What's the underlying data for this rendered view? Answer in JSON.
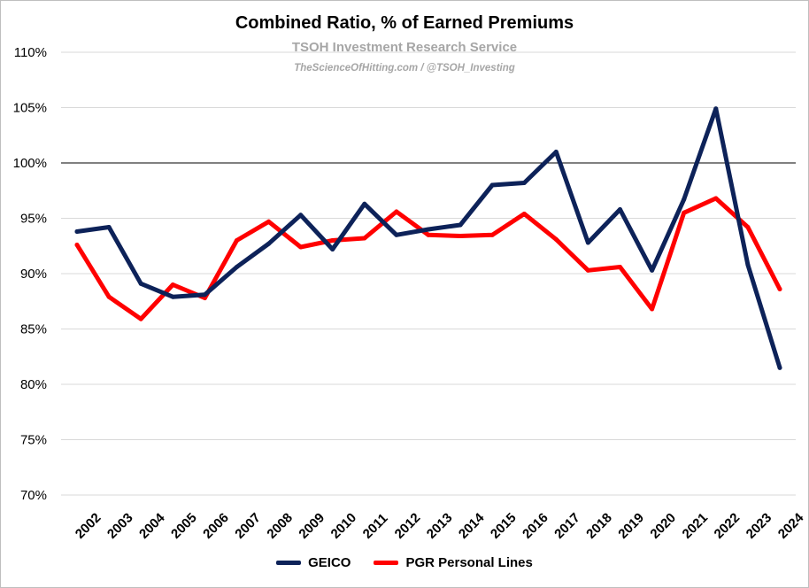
{
  "chart_data": {
    "type": "line",
    "title": "Combined Ratio, % of Earned Premiums",
    "subtitle": "TSOH Investment Research Service",
    "credit": "TheScienceOfHitting.com / @TSOH_Investing",
    "x": [
      "2002",
      "2003",
      "2004",
      "2005",
      "2006",
      "2007",
      "2008",
      "2009",
      "2010",
      "2011",
      "2012",
      "2013",
      "2014",
      "2015",
      "2016",
      "2017",
      "2018",
      "2019",
      "2020",
      "2021",
      "2022",
      "2023",
      "2024"
    ],
    "ylim": [
      70,
      110
    ],
    "yticks": [
      70,
      75,
      80,
      85,
      90,
      95,
      100,
      105,
      110
    ],
    "ytick_labels": [
      "70%",
      "75%",
      "80%",
      "85%",
      "90%",
      "95%",
      "100%",
      "105%",
      "110%"
    ],
    "reference_line": 100,
    "grid": true,
    "legend_position": "bottom",
    "series": [
      {
        "name": "GEICO",
        "color": "#0d2259",
        "values": [
          93.8,
          94.2,
          89.1,
          87.9,
          88.1,
          90.6,
          92.7,
          95.3,
          92.2,
          96.3,
          93.5,
          94.0,
          94.4,
          98.0,
          98.2,
          101.0,
          92.8,
          95.8,
          90.3,
          96.7,
          104.9,
          90.8,
          81.5
        ]
      },
      {
        "name": "PGR Personal Lines",
        "color": "#ff0000",
        "values": [
          92.6,
          87.9,
          85.9,
          89.0,
          87.8,
          93.0,
          94.7,
          92.4,
          93.0,
          93.2,
          95.6,
          93.5,
          93.4,
          93.5,
          95.4,
          93.1,
          90.3,
          90.6,
          86.8,
          95.5,
          96.8,
          94.2,
          88.6
        ]
      }
    ]
  }
}
